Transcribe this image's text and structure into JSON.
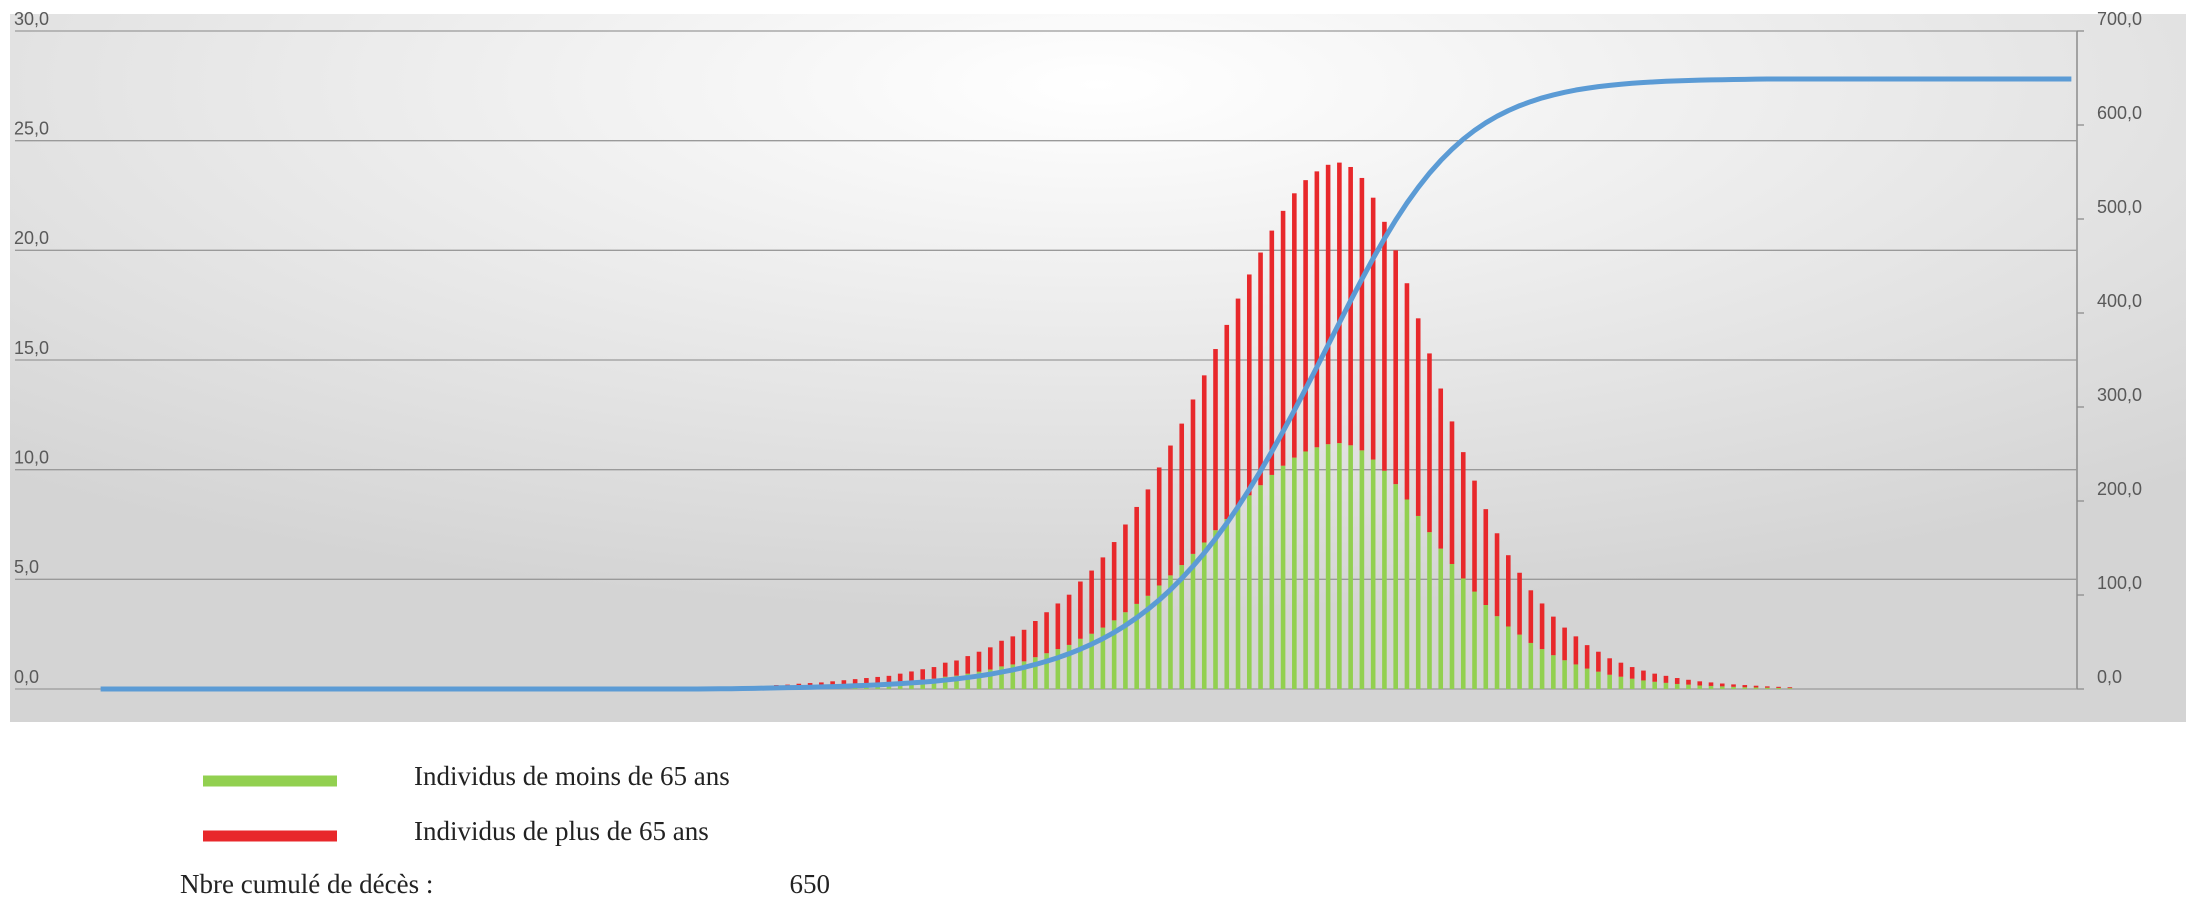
{
  "chart_data": {
    "type": "bar",
    "stacked": true,
    "categories": [
      null,
      null,
      null,
      null,
      null,
      null,
      null,
      null,
      null,
      null,
      null,
      null,
      null,
      null,
      null,
      null,
      null,
      null,
      null,
      null,
      null,
      null,
      null,
      null,
      null,
      null,
      null,
      null,
      null,
      null,
      null,
      null,
      null,
      null,
      null,
      null,
      null,
      null,
      null,
      null,
      null,
      null,
      null,
      null,
      null,
      null,
      null,
      null,
      null,
      null,
      null,
      null,
      null,
      null,
      null,
      null,
      null,
      null,
      null,
      null,
      null,
      null,
      null,
      null,
      null,
      null,
      null,
      null,
      null,
      null,
      null,
      null,
      null,
      null,
      null,
      null,
      null,
      null,
      null,
      null,
      null,
      null,
      null,
      null,
      null,
      null,
      null,
      null,
      null,
      null,
      null,
      null,
      null,
      null,
      null,
      null,
      null,
      null,
      null,
      null,
      null,
      null,
      null,
      null,
      null,
      null,
      null,
      null,
      null,
      null,
      null,
      null,
      null,
      null,
      null,
      null,
      null,
      null,
      null,
      null,
      null,
      null,
      null,
      null,
      null,
      null,
      null,
      null,
      null,
      null,
      null,
      null,
      null,
      null,
      null,
      null,
      null,
      null,
      null,
      null,
      null,
      null,
      null,
      null,
      null,
      null,
      null,
      null,
      null,
      null,
      null,
      null,
      null,
      null,
      null,
      null,
      null,
      null,
      null,
      null,
      null,
      null,
      null,
      null,
      null,
      null,
      null,
      null,
      null,
      null,
      null,
      null,
      null,
      null,
      null,
      null
    ],
    "series": [
      {
        "name": "Individus de moins de 65 ans",
        "color": "#92d050",
        "values": [
          0,
          0,
          0,
          0,
          0,
          0,
          0,
          0,
          0,
          0,
          0,
          0,
          0,
          0,
          0,
          0,
          0,
          0,
          0,
          0,
          0,
          0,
          0,
          0,
          0,
          0,
          0,
          0,
          0,
          0,
          0,
          0,
          0,
          0,
          0,
          0,
          0,
          0,
          0,
          0,
          0,
          0,
          0,
          0,
          0,
          0,
          0,
          0,
          0,
          0,
          0,
          0,
          0,
          0,
          0,
          0,
          0,
          0,
          0,
          0,
          0.08,
          0.09,
          0.11,
          0.13,
          0.14,
          0.16,
          0.19,
          0.21,
          0.23,
          0.26,
          0.28,
          0.33,
          0.37,
          0.42,
          0.47,
          0.56,
          0.61,
          0.7,
          0.79,
          0.89,
          1.03,
          1.12,
          1.26,
          1.45,
          1.63,
          1.82,
          2.01,
          2.29,
          2.52,
          2.8,
          3.13,
          3.5,
          3.88,
          4.25,
          4.72,
          5.18,
          5.65,
          6.16,
          6.68,
          7.24,
          7.75,
          8.31,
          8.83,
          9.29,
          9.76,
          10.18,
          10.55,
          10.83,
          11.02,
          11.16,
          11.21,
          11.11,
          10.88,
          10.46,
          9.95,
          9.34,
          8.64,
          7.89,
          7.15,
          6.4,
          5.7,
          5.04,
          4.44,
          3.83,
          3.32,
          2.85,
          2.48,
          2.1,
          1.82,
          1.54,
          1.31,
          1.12,
          0.93,
          0.79,
          0.65,
          0.56,
          0.47,
          0.39,
          0.33,
          0.28,
          0.23,
          0.2,
          0.16,
          0.14,
          0.12,
          0.1,
          0.08,
          0.07,
          0.06,
          0.05,
          0.04,
          0,
          0,
          0,
          0,
          0,
          0,
          0,
          0,
          0,
          0,
          0,
          0,
          0,
          0,
          0,
          0,
          0,
          0,
          0,
          0,
          0,
          0,
          0,
          0,
          0
        ]
      },
      {
        "name": "Individus de plus de 65 ans",
        "color": "#e8282b",
        "values": [
          0,
          0,
          0,
          0,
          0,
          0,
          0,
          0,
          0,
          0,
          0,
          0,
          0,
          0,
          0,
          0,
          0,
          0,
          0,
          0,
          0,
          0,
          0,
          0,
          0,
          0,
          0,
          0,
          0,
          0,
          0,
          0,
          0,
          0,
          0,
          0,
          0,
          0,
          0,
          0,
          0,
          0,
          0,
          0,
          0,
          0,
          0,
          0,
          0,
          0,
          0,
          0,
          0,
          0,
          0,
          0,
          0,
          0,
          0,
          0,
          0.1,
          0.11,
          0.13,
          0.14,
          0.16,
          0.19,
          0.21,
          0.24,
          0.27,
          0.29,
          0.32,
          0.37,
          0.43,
          0.48,
          0.53,
          0.64,
          0.69,
          0.8,
          0.91,
          1.01,
          1.17,
          1.28,
          1.44,
          1.65,
          1.87,
          2.08,
          2.29,
          2.61,
          2.88,
          3.2,
          3.57,
          4.0,
          4.42,
          4.85,
          5.38,
          5.92,
          6.45,
          7.04,
          7.62,
          8.26,
          8.85,
          9.49,
          10.07,
          10.61,
          11.14,
          11.62,
          12.05,
          12.37,
          12.58,
          12.74,
          12.79,
          12.69,
          12.42,
          11.94,
          11.35,
          10.66,
          9.86,
          9.01,
          8.15,
          7.3,
          6.5,
          5.76,
          5.06,
          4.37,
          3.78,
          3.25,
          2.82,
          2.4,
          2.08,
          1.76,
          1.49,
          1.28,
          1.07,
          0.91,
          0.75,
          0.64,
          0.53,
          0.45,
          0.37,
          0.32,
          0.27,
          0.22,
          0.19,
          0.16,
          0.13,
          0.11,
          0.1,
          0.08,
          0.06,
          0.05,
          0.04,
          0,
          0,
          0,
          0,
          0,
          0,
          0,
          0,
          0,
          0,
          0,
          0,
          0,
          0,
          0,
          0,
          0,
          0,
          0,
          0,
          0,
          0,
          0,
          0,
          0
        ]
      },
      {
        "type": "line",
        "axis": "y2",
        "color": "#5b9bd5",
        "values": [
          0,
          0,
          0,
          0,
          0,
          0,
          0,
          0,
          0,
          0,
          0,
          0,
          0,
          0,
          0,
          0,
          0,
          0,
          0,
          0,
          0,
          0,
          0,
          0,
          0,
          0,
          0,
          0,
          0,
          0,
          0,
          0,
          0,
          0,
          0,
          0,
          0,
          0,
          0,
          0,
          0,
          0,
          0,
          0,
          0,
          0,
          0,
          0,
          0,
          0,
          0,
          0,
          0,
          0,
          0.1,
          0.2,
          0.3,
          0.5,
          0.7,
          0.9,
          1.2,
          1.4,
          1.6,
          1.9,
          2.2,
          2.5,
          2.9,
          3.4,
          3.8,
          4.4,
          5.0,
          5.7,
          6.5,
          7.3,
          8.3,
          9.5,
          10.8,
          12.3,
          13.9,
          15.8,
          18.0,
          20.3,
          23.0,
          26.1,
          29.5,
          33.3,
          37.6,
          42.4,
          47.7,
          53.6,
          60.2,
          67.6,
          75.8,
          84.8,
          94.7,
          105.6,
          117.6,
          130.6,
          144.7,
          159.9,
          176.3,
          193.8,
          212.4,
          232.0,
          252.6,
          274.1,
          296.3,
          319.2,
          342.4,
          366.0,
          389.6,
          413.1,
          436.0,
          458.1,
          479.1,
          498.8,
          517.0,
          533.6,
          548.7,
          562.2,
          574.2,
          584.9,
          594.2,
          602.3,
          609.3,
          615.3,
          620.5,
          624.9,
          628.8,
          632.0,
          634.8,
          637.2,
          639.1,
          640.8,
          642.2,
          643.4,
          644.4,
          645.2,
          645.9,
          646.5,
          647.0,
          647.4,
          647.7,
          648.0,
          648.2,
          648.4,
          648.6,
          648.8,
          648.9,
          649.0,
          649.0,
          649,
          649,
          649,
          649,
          649,
          649,
          649,
          649,
          649,
          649,
          649,
          649,
          649,
          649,
          649,
          649,
          649,
          649,
          649,
          649,
          649,
          649,
          649,
          649,
          649
        ]
      }
    ],
    "ylim": [
      0,
      30
    ],
    "yticks": [
      {
        "value": 0,
        "label": "0,0"
      },
      {
        "value": 5,
        "label": "5,0"
      },
      {
        "value": 10,
        "label": "10,0"
      },
      {
        "value": 15,
        "label": "15,0"
      },
      {
        "value": 20,
        "label": "20,0"
      },
      {
        "value": 25,
        "label": "25,0"
      },
      {
        "value": 30,
        "label": "30,0"
      }
    ],
    "y2lim": [
      0,
      700
    ],
    "y2ticks": [
      {
        "value": 0,
        "label": "0,0"
      },
      {
        "value": 100,
        "label": "100,0"
      },
      {
        "value": 200,
        "label": "200,0"
      },
      {
        "value": 300,
        "label": "300,0"
      },
      {
        "value": 400,
        "label": "400,0"
      },
      {
        "value": 500,
        "label": "500,0"
      },
      {
        "value": 600,
        "label": "600,0"
      },
      {
        "value": 700,
        "label": "700,0"
      }
    ],
    "grid": true
  },
  "summary": {
    "label": "Nbre cumulé de décès :",
    "value": 650
  }
}
